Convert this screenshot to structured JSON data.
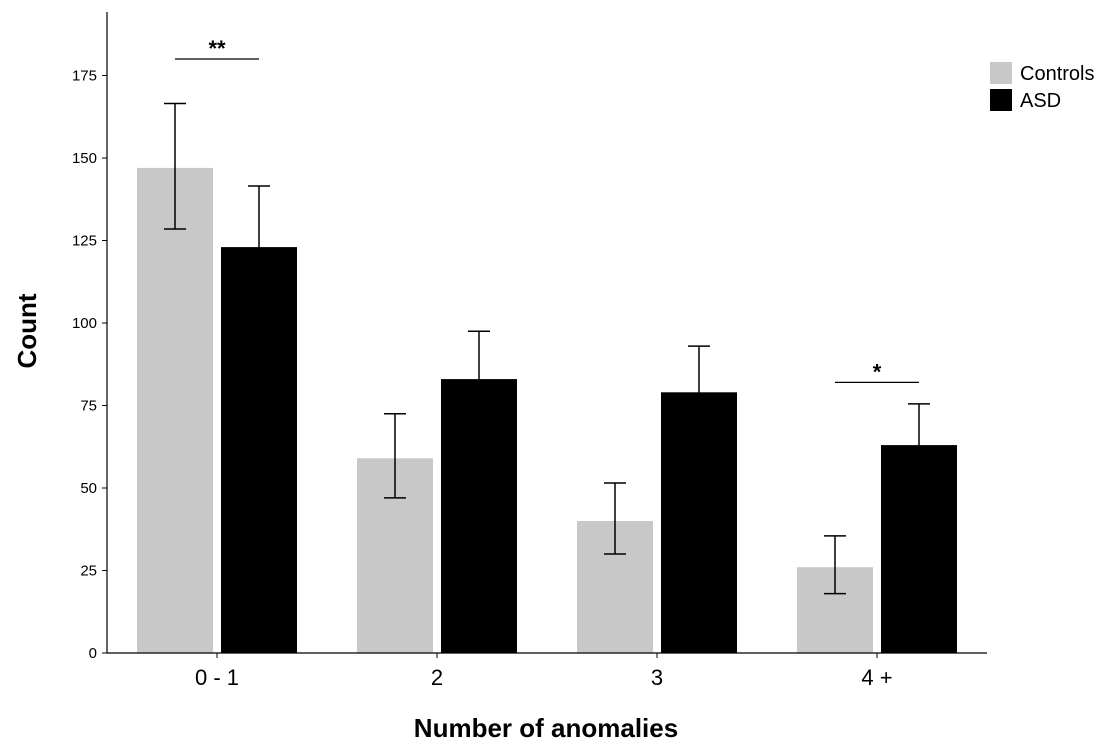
{
  "chart_data": {
    "type": "bar",
    "title": "",
    "xlabel": "Number of anomalies",
    "ylabel": "Count",
    "categories": [
      "0 - 1",
      "2",
      "3",
      "4 +"
    ],
    "ylim": [
      0,
      190
    ],
    "yticks": [
      0,
      25,
      50,
      75,
      100,
      125,
      150,
      175
    ],
    "grid": false,
    "legend_position": "top-right",
    "series": [
      {
        "name": "Controls",
        "color": "#c8c8c8",
        "values": [
          147,
          59,
          40,
          26
        ],
        "error_low": [
          128.5,
          47,
          30,
          18
        ],
        "error_high": [
          166.5,
          72.5,
          51.5,
          35.5
        ]
      },
      {
        "name": "ASD",
        "color": "#000000",
        "values": [
          123,
          83,
          79,
          63
        ],
        "error_low": [
          104,
          68.5,
          65,
          51
        ],
        "error_high": [
          141.5,
          97.5,
          93,
          75.5
        ]
      }
    ],
    "annotations": [
      {
        "text": "**",
        "category_index": 0,
        "y": 180
      },
      {
        "text": "*",
        "category_index": 3,
        "y": 82
      }
    ]
  }
}
